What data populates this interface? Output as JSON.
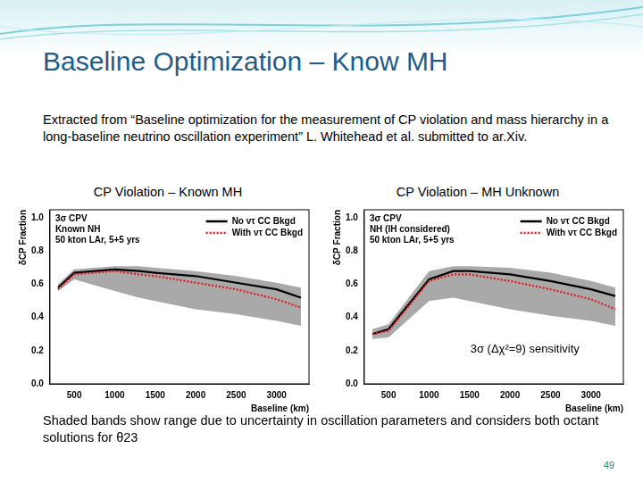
{
  "title": "Baseline Optimization – Know MH",
  "intro": "Extracted from “Baseline optimization for the measurement of CP violation and mass hierarchy in a long-baseline neutrino oscillation experiment” L. Whitehead et al. submitted to ar.Xiv.",
  "caption": "Shaded bands show range due to uncertainty in oscillation parameters and considers both octant solutions for θ23",
  "page": "49",
  "chart_data": [
    {
      "type": "line",
      "title": "CP Violation – Known MH",
      "x_label": "Baseline (km)",
      "y_label": "δCP Fraction",
      "annotations": [
        "3σ CPV",
        "Known NH",
        "50 kton LAr, 5+5 yrs"
      ],
      "x": [
        300,
        500,
        1000,
        1300,
        1500,
        2000,
        2500,
        3000,
        3300
      ],
      "series": [
        {
          "name": "No ντ CC Bkgd",
          "color": "#000000",
          "line_style": "solid",
          "values": [
            0.58,
            0.67,
            0.69,
            0.68,
            0.67,
            0.65,
            0.61,
            0.57,
            0.52
          ]
        },
        {
          "name": "With ντ CC Bkgd",
          "color": "#e8161b",
          "line_style": "dotted",
          "values": [
            0.57,
            0.66,
            0.68,
            0.66,
            0.65,
            0.61,
            0.57,
            0.51,
            0.46
          ]
        }
      ],
      "band_low": [
        0.56,
        0.63,
        0.56,
        0.52,
        0.5,
        0.45,
        0.42,
        0.38,
        0.35
      ],
      "band_high": [
        0.6,
        0.69,
        0.71,
        0.71,
        0.7,
        0.68,
        0.65,
        0.61,
        0.58
      ],
      "band_color": "#a9a9a9",
      "xlim": [
        200,
        3400
      ],
      "xticks": [
        500,
        1000,
        1500,
        2000,
        2500,
        3000
      ],
      "ylim": [
        0,
        1.05
      ],
      "yticks": [
        {
          "value": 0,
          "label": "0.0"
        },
        {
          "value": 0.2,
          "label": "0.2"
        },
        {
          "value": 0.4,
          "label": "0.4"
        },
        {
          "value": 0.6,
          "label": "0.6"
        },
        {
          "value": 0.8,
          "label": "0.8"
        },
        {
          "value": 1,
          "label": "1.0"
        }
      ],
      "grid": false,
      "legend": "upper right"
    },
    {
      "type": "line",
      "title": "CP Violation – MH Unknown",
      "x_label": "Baseline (km)",
      "y_label": "δCP Fraction",
      "annotations": [
        "3σ CPV",
        "NH (IH considered)",
        "50 kton LAr, 5+5 yrs"
      ],
      "note": "3σ (Δχ²=9) sensitivity",
      "x": [
        300,
        500,
        1000,
        1300,
        1500,
        2000,
        2500,
        3000,
        3300
      ],
      "series": [
        {
          "name": "No ντ CC Bkgd",
          "color": "#000000",
          "line_style": "solid",
          "values": [
            0.3,
            0.33,
            0.63,
            0.68,
            0.68,
            0.66,
            0.62,
            0.57,
            0.53
          ]
        },
        {
          "name": "With ντ CC Bkgd",
          "color": "#e8161b",
          "line_style": "dotted",
          "values": [
            0.3,
            0.32,
            0.62,
            0.66,
            0.66,
            0.62,
            0.57,
            0.51,
            0.45
          ]
        }
      ],
      "band_low": [
        0.27,
        0.28,
        0.5,
        0.52,
        0.5,
        0.45,
        0.41,
        0.38,
        0.35
      ],
      "band_high": [
        0.33,
        0.36,
        0.68,
        0.71,
        0.71,
        0.7,
        0.67,
        0.62,
        0.58
      ],
      "band_color": "#a9a9a9",
      "xlim": [
        200,
        3400
      ],
      "xticks": [
        500,
        1000,
        1500,
        2000,
        2500,
        3000
      ],
      "ylim": [
        0,
        1.05
      ],
      "yticks": [
        {
          "value": 0,
          "label": "0.0"
        },
        {
          "value": 0.2,
          "label": "0.2"
        },
        {
          "value": 0.4,
          "label": "0.4"
        },
        {
          "value": 0.6,
          "label": "0.6"
        },
        {
          "value": 0.8,
          "label": "0.8"
        },
        {
          "value": 1,
          "label": "1.0"
        }
      ],
      "grid": false,
      "legend": "upper right"
    }
  ]
}
